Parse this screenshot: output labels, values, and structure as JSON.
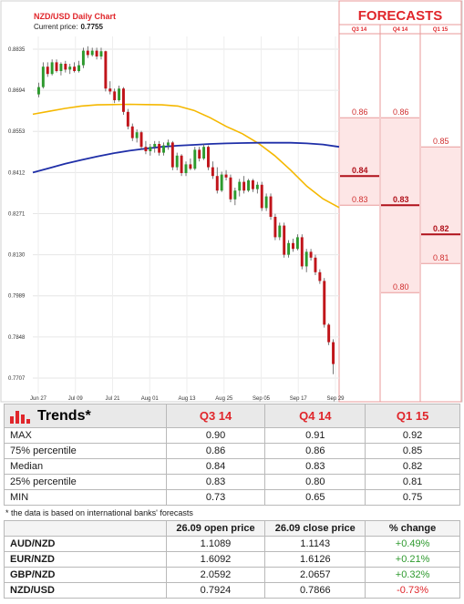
{
  "header": {
    "title": "NZD/USD Daily Chart",
    "price_label": "Current price:",
    "price_value": "0.7755"
  },
  "forecast_panel": {
    "title": "FORECASTS",
    "columns": [
      "Q3 14",
      "Q4 14",
      "Q1 15"
    ]
  },
  "colors": {
    "accent": "#e0262b",
    "bull": "#2e9a2e",
    "bear": "#c0141a",
    "ma_short": "#f5b800",
    "ma_long": "#1f2fa8",
    "forecast_fill": "#fde6e6"
  },
  "chart_data": {
    "type": "candlestick",
    "title": "NZD/USD Daily Chart",
    "ylim": [
      0.766,
      0.886
    ],
    "y_ticks": [
      "0.8835",
      "0.8694",
      "0.8553",
      "0.8412",
      "0.8271",
      "0.8130",
      "0.7989",
      "0.7848",
      "0.7707"
    ],
    "x_ticks": [
      "Jun 27",
      "Jul 09",
      "Jul 21",
      "Aug 01",
      "Aug 13",
      "Aug 25",
      "Sep 05",
      "Sep 17",
      "Sep 29"
    ],
    "candles": [
      {
        "o": 0.868,
        "h": 0.872,
        "l": 0.867,
        "c": 0.8705
      },
      {
        "o": 0.8705,
        "h": 0.879,
        "l": 0.87,
        "c": 0.8775
      },
      {
        "o": 0.8775,
        "h": 0.879,
        "l": 0.874,
        "c": 0.875
      },
      {
        "o": 0.875,
        "h": 0.88,
        "l": 0.8745,
        "c": 0.879
      },
      {
        "o": 0.879,
        "h": 0.88,
        "l": 0.8755,
        "c": 0.876
      },
      {
        "o": 0.876,
        "h": 0.879,
        "l": 0.8745,
        "c": 0.8785
      },
      {
        "o": 0.8785,
        "h": 0.8795,
        "l": 0.8755,
        "c": 0.8765
      },
      {
        "o": 0.8765,
        "h": 0.8785,
        "l": 0.875,
        "c": 0.8775
      },
      {
        "o": 0.8775,
        "h": 0.879,
        "l": 0.8755,
        "c": 0.876
      },
      {
        "o": 0.876,
        "h": 0.8795,
        "l": 0.8755,
        "c": 0.878
      },
      {
        "o": 0.878,
        "h": 0.884,
        "l": 0.877,
        "c": 0.883
      },
      {
        "o": 0.883,
        "h": 0.8845,
        "l": 0.8805,
        "c": 0.8815
      },
      {
        "o": 0.8815,
        "h": 0.884,
        "l": 0.881,
        "c": 0.883
      },
      {
        "o": 0.883,
        "h": 0.884,
        "l": 0.88,
        "c": 0.881
      },
      {
        "o": 0.881,
        "h": 0.884,
        "l": 0.88,
        "c": 0.8828
      },
      {
        "o": 0.8828,
        "h": 0.883,
        "l": 0.869,
        "c": 0.87
      },
      {
        "o": 0.87,
        "h": 0.8725,
        "l": 0.868,
        "c": 0.869
      },
      {
        "o": 0.869,
        "h": 0.87,
        "l": 0.865,
        "c": 0.866
      },
      {
        "o": 0.866,
        "h": 0.871,
        "l": 0.8655,
        "c": 0.87
      },
      {
        "o": 0.87,
        "h": 0.8705,
        "l": 0.861,
        "c": 0.862
      },
      {
        "o": 0.862,
        "h": 0.863,
        "l": 0.856,
        "c": 0.857
      },
      {
        "o": 0.857,
        "h": 0.858,
        "l": 0.852,
        "c": 0.853
      },
      {
        "o": 0.853,
        "h": 0.856,
        "l": 0.8515,
        "c": 0.855
      },
      {
        "o": 0.855,
        "h": 0.8555,
        "l": 0.849,
        "c": 0.85
      },
      {
        "o": 0.85,
        "h": 0.852,
        "l": 0.8475,
        "c": 0.8485
      },
      {
        "o": 0.8485,
        "h": 0.851,
        "l": 0.847,
        "c": 0.85
      },
      {
        "o": 0.85,
        "h": 0.852,
        "l": 0.848,
        "c": 0.851
      },
      {
        "o": 0.851,
        "h": 0.852,
        "l": 0.847,
        "c": 0.848
      },
      {
        "o": 0.848,
        "h": 0.8515,
        "l": 0.847,
        "c": 0.8505
      },
      {
        "o": 0.8505,
        "h": 0.8525,
        "l": 0.849,
        "c": 0.8515
      },
      {
        "o": 0.8515,
        "h": 0.852,
        "l": 0.842,
        "c": 0.843
      },
      {
        "o": 0.843,
        "h": 0.848,
        "l": 0.842,
        "c": 0.847
      },
      {
        "o": 0.847,
        "h": 0.8475,
        "l": 0.84,
        "c": 0.841
      },
      {
        "o": 0.841,
        "h": 0.845,
        "l": 0.84,
        "c": 0.844
      },
      {
        "o": 0.844,
        "h": 0.846,
        "l": 0.842,
        "c": 0.8425
      },
      {
        "o": 0.8425,
        "h": 0.85,
        "l": 0.842,
        "c": 0.849
      },
      {
        "o": 0.849,
        "h": 0.85,
        "l": 0.845,
        "c": 0.846
      },
      {
        "o": 0.846,
        "h": 0.851,
        "l": 0.8455,
        "c": 0.85
      },
      {
        "o": 0.85,
        "h": 0.8505,
        "l": 0.842,
        "c": 0.843
      },
      {
        "o": 0.843,
        "h": 0.845,
        "l": 0.839,
        "c": 0.84
      },
      {
        "o": 0.84,
        "h": 0.843,
        "l": 0.834,
        "c": 0.835
      },
      {
        "o": 0.835,
        "h": 0.8415,
        "l": 0.8345,
        "c": 0.8405
      },
      {
        "o": 0.8405,
        "h": 0.842,
        "l": 0.8385,
        "c": 0.8395
      },
      {
        "o": 0.8395,
        "h": 0.8405,
        "l": 0.831,
        "c": 0.832
      },
      {
        "o": 0.832,
        "h": 0.836,
        "l": 0.83,
        "c": 0.835
      },
      {
        "o": 0.835,
        "h": 0.839,
        "l": 0.833,
        "c": 0.838
      },
      {
        "o": 0.838,
        "h": 0.84,
        "l": 0.834,
        "c": 0.835
      },
      {
        "o": 0.835,
        "h": 0.839,
        "l": 0.8345,
        "c": 0.8385
      },
      {
        "o": 0.8385,
        "h": 0.839,
        "l": 0.8345,
        "c": 0.8355
      },
      {
        "o": 0.8355,
        "h": 0.838,
        "l": 0.834,
        "c": 0.837
      },
      {
        "o": 0.837,
        "h": 0.838,
        "l": 0.828,
        "c": 0.829
      },
      {
        "o": 0.829,
        "h": 0.834,
        "l": 0.828,
        "c": 0.833
      },
      {
        "o": 0.833,
        "h": 0.834,
        "l": 0.825,
        "c": 0.826
      },
      {
        "o": 0.826,
        "h": 0.827,
        "l": 0.818,
        "c": 0.819
      },
      {
        "o": 0.819,
        "h": 0.824,
        "l": 0.818,
        "c": 0.823
      },
      {
        "o": 0.823,
        "h": 0.824,
        "l": 0.812,
        "c": 0.813
      },
      {
        "o": 0.813,
        "h": 0.818,
        "l": 0.812,
        "c": 0.817
      },
      {
        "o": 0.817,
        "h": 0.8185,
        "l": 0.814,
        "c": 0.815
      },
      {
        "o": 0.815,
        "h": 0.82,
        "l": 0.8145,
        "c": 0.819
      },
      {
        "o": 0.819,
        "h": 0.82,
        "l": 0.808,
        "c": 0.809
      },
      {
        "o": 0.809,
        "h": 0.815,
        "l": 0.807,
        "c": 0.814
      },
      {
        "o": 0.814,
        "h": 0.815,
        "l": 0.811,
        "c": 0.812
      },
      {
        "o": 0.812,
        "h": 0.813,
        "l": 0.806,
        "c": 0.807
      },
      {
        "o": 0.807,
        "h": 0.808,
        "l": 0.803,
        "c": 0.804
      },
      {
        "o": 0.804,
        "h": 0.805,
        "l": 0.788,
        "c": 0.789
      },
      {
        "o": 0.789,
        "h": 0.7895,
        "l": 0.782,
        "c": 0.783
      },
      {
        "o": 0.783,
        "h": 0.784,
        "l": 0.772,
        "c": 0.7755
      }
    ],
    "ma_short": [
      0.8612,
      0.8622,
      0.8632,
      0.864,
      0.8644,
      0.8645,
      0.8646,
      0.8645,
      0.8644,
      0.864,
      0.8625,
      0.86,
      0.857,
      0.8545,
      0.8512,
      0.847,
      0.842,
      0.8365,
      0.8322,
      0.8292
    ],
    "ma_long": [
      0.8412,
      0.8427,
      0.8442,
      0.8455,
      0.8467,
      0.8478,
      0.8487,
      0.8494,
      0.85,
      0.8504,
      0.8507,
      0.851,
      0.8512,
      0.8513,
      0.8514,
      0.8514,
      0.8514,
      0.8512,
      0.8508,
      0.85
    ],
    "forecasts": [
      {
        "quarter": "Q3 14",
        "max": "0.90",
        "p75": "0.86",
        "median": "0.84",
        "p25": "0.83",
        "min": "0.73"
      },
      {
        "quarter": "Q4 14",
        "max": "0.91",
        "p75": "0.86",
        "median": "0.83",
        "p25": "0.80",
        "min": "0.65"
      },
      {
        "quarter": "Q1 15",
        "max": "0.92",
        "p75": "0.85",
        "median": "0.82",
        "p25": "0.81",
        "min": "0.75"
      }
    ]
  },
  "trends": {
    "title": "Trends*",
    "columns": [
      "Q3 14",
      "Q4 14",
      "Q1 15"
    ],
    "rows": [
      {
        "label": "MAX",
        "values": [
          "0.90",
          "0.91",
          "0.92"
        ]
      },
      {
        "label": "75% percentile",
        "values": [
          "0.86",
          "0.86",
          "0.85"
        ]
      },
      {
        "label": "Median",
        "values": [
          "0.84",
          "0.83",
          "0.82"
        ]
      },
      {
        "label": "25% percentile",
        "values": [
          "0.83",
          "0.80",
          "0.81"
        ]
      },
      {
        "label": "MIN",
        "values": [
          "0.73",
          "0.65",
          "0.75"
        ]
      }
    ],
    "note": "* the data is based on international banks' forecasts"
  },
  "prices": {
    "headers": [
      "",
      "26.09 open price",
      "26.09 close price",
      "% change"
    ],
    "rows": [
      {
        "pair": "AUD/NZD",
        "open": "1.1089",
        "close": "1.1143",
        "change": "+0.49%",
        "dir": "pos"
      },
      {
        "pair": "EUR/NZD",
        "open": "1.6092",
        "close": "1.6126",
        "change": "+0.21%",
        "dir": "pos"
      },
      {
        "pair": "GBP/NZD",
        "open": "2.0592",
        "close": "2.0657",
        "change": "+0.32%",
        "dir": "pos"
      },
      {
        "pair": "NZD/USD",
        "open": "0.7924",
        "close": "0.7866",
        "change": "-0.73%",
        "dir": "neg"
      }
    ]
  }
}
